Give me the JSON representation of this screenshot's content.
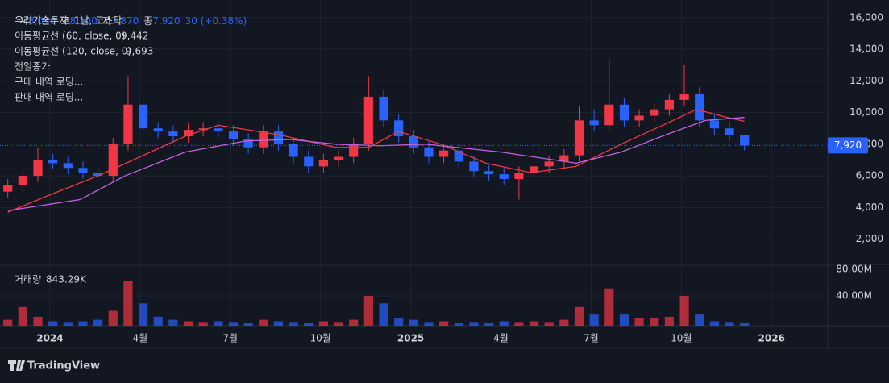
{
  "chart_data": {
    "type": "candlestick",
    "header": {
      "symbol": "우리기술투자, 1날, 코스닥",
      "open_label": "시",
      "open": "8,010",
      "high_label": "고",
      "high": "8,100",
      "low_label": "저",
      "low": "7,870",
      "close_label": "종",
      "close": "7,920",
      "change": "30 (+0.38%)",
      "prev_close": "전일종가",
      "buy": "구매 내역 로딩...",
      "sell": "판매 내역 로딩...",
      "volume_label": "거래량",
      "volume_value": "843.29K"
    },
    "x": [
      -1.4,
      -0.9,
      -0.4,
      0.1,
      0.6,
      1.1,
      1.6,
      2.1,
      2.6,
      3.1,
      3.6,
      4.1,
      4.6,
      5.1,
      5.6,
      6.1,
      6.6,
      7.1,
      7.6,
      8.1,
      8.6,
      9.1,
      9.6,
      10.1,
      10.6,
      11.1,
      11.6,
      12.1,
      12.6,
      13.1,
      13.6,
      14.1,
      14.6,
      15.1,
      15.6,
      16.1,
      16.6,
      17.1,
      17.6,
      18.1,
      18.6,
      19.1,
      19.6,
      20.1,
      20.6,
      21.1,
      21.6,
      22.1,
      22.6,
      23.1
    ],
    "open": [
      5000,
      5400,
      6000,
      7000,
      6800,
      6500,
      6200,
      6000,
      8000,
      10500,
      9000,
      8800,
      8500,
      8900,
      9000,
      8800,
      8300,
      7800,
      8800,
      8000,
      7200,
      6600,
      7000,
      7200,
      8000,
      11000,
      9500,
      8500,
      7800,
      7200,
      7600,
      6900,
      6300,
      6100,
      5800,
      6200,
      6600,
      6900,
      7300,
      9500,
      9200,
      10500,
      9500,
      9800,
      10200,
      10800,
      11200,
      9500,
      9000,
      8600
    ],
    "high": [
      5800,
      6400,
      7800,
      7400,
      7200,
      6900,
      6600,
      8400,
      12300,
      10900,
      9400,
      9200,
      9300,
      9400,
      9400,
      9200,
      8700,
      9200,
      9200,
      8400,
      7600,
      7400,
      7600,
      8400,
      12300,
      11400,
      9900,
      8900,
      8200,
      8000,
      8000,
      7300,
      6700,
      6500,
      6600,
      7000,
      7300,
      7700,
      10400,
      10200,
      13400,
      10900,
      10200,
      10600,
      11200,
      13000,
      11600,
      9900,
      9400,
      8600
    ],
    "low": [
      4600,
      5000,
      5600,
      6400,
      6100,
      5800,
      5600,
      5600,
      7600,
      8600,
      8400,
      8100,
      8100,
      8500,
      8400,
      7900,
      7400,
      7400,
      7600,
      6800,
      6200,
      6200,
      6600,
      6800,
      7600,
      9100,
      8100,
      7400,
      6800,
      6800,
      6500,
      5900,
      5700,
      5400,
      4500,
      5800,
      6200,
      6500,
      6900,
      8800,
      8800,
      9100,
      9100,
      9400,
      9800,
      10400,
      9100,
      8600,
      8200,
      7600
    ],
    "close": [
      5400,
      6000,
      7000,
      6800,
      6500,
      6200,
      6000,
      8000,
      10500,
      9000,
      8800,
      8500,
      8900,
      9000,
      8800,
      8300,
      7800,
      8800,
      8000,
      7200,
      6600,
      7000,
      7200,
      8000,
      11000,
      9500,
      8500,
      7800,
      7200,
      7600,
      6900,
      6300,
      6100,
      5800,
      6200,
      6600,
      6900,
      7300,
      9500,
      9200,
      10500,
      9500,
      9800,
      10200,
      10800,
      11200,
      9500,
      9000,
      8600,
      7920
    ],
    "volume": [
      8000000,
      25000000,
      12000000,
      6000000,
      5000000,
      6000000,
      8000000,
      20000000,
      60000000,
      30000000,
      12000000,
      8000000,
      6000000,
      5000000,
      6000000,
      5000000,
      4000000,
      8000000,
      6000000,
      5000000,
      4000000,
      6000000,
      5000000,
      8000000,
      40000000,
      30000000,
      10000000,
      8000000,
      5000000,
      6000000,
      4000000,
      5000000,
      4000000,
      6000000,
      5000000,
      6000000,
      5000000,
      8000000,
      25000000,
      15000000,
      50000000,
      15000000,
      10000000,
      10000000,
      12000000,
      40000000,
      15000000,
      6000000,
      5000000,
      4000000
    ],
    "up_color": "#f23645",
    "down_color": "#2962ff",
    "series": [
      {
        "name": "이동평균선 (60, close, 0)",
        "legend_value": "9,442",
        "color": "#f23645",
        "x": [
          -1.4,
          0,
          1.6,
          3,
          4.5,
          5.6,
          7.6,
          9.5,
          10.6,
          11.6,
          13,
          14.5,
          16,
          17.5,
          19,
          20.5,
          21.5,
          22.5,
          23.1
        ],
        "values": [
          3700,
          4800,
          6000,
          7200,
          8500,
          9200,
          8600,
          7800,
          7800,
          8800,
          8000,
          6800,
          6200,
          6600,
          8000,
          9300,
          10200,
          9700,
          9442
        ]
      },
      {
        "name": "이동평균선 (120, close, 0)",
        "legend_value": "9,693",
        "color": "#c660e0",
        "x": [
          -1.4,
          1,
          2.5,
          4.5,
          6.5,
          8,
          9.5,
          11,
          12.5,
          15,
          17.5,
          19,
          20.5,
          21.8,
          23.1
        ],
        "values": [
          3800,
          4500,
          6000,
          7500,
          8200,
          8300,
          8000,
          7900,
          8000,
          7500,
          6800,
          7500,
          8600,
          9500,
          9693
        ]
      }
    ],
    "last_price": {
      "value": 7920,
      "label": "7,920"
    },
    "xlim": [
      -1.66,
      25.87
    ],
    "xticks": [
      {
        "value": 0,
        "label": "2024"
      },
      {
        "value": 3,
        "label": "4월"
      },
      {
        "value": 6,
        "label": "7월"
      },
      {
        "value": 9,
        "label": "10월"
      },
      {
        "value": 12,
        "label": "2025"
      },
      {
        "value": 15,
        "label": "4월"
      },
      {
        "value": 18,
        "label": "7월"
      },
      {
        "value": 21,
        "label": "10월"
      },
      {
        "value": 24,
        "label": "2026"
      }
    ],
    "ylim": [
      400,
      16600
    ],
    "yticks": [
      {
        "value": 2000,
        "label": "2,000"
      },
      {
        "value": 4000,
        "label": "4,000"
      },
      {
        "value": 6000,
        "label": "6,000"
      },
      {
        "value": 8000,
        "label": "8,000"
      },
      {
        "value": 10000,
        "label": "10,000"
      },
      {
        "value": 12000,
        "label": "12,000"
      },
      {
        "value": 14000,
        "label": "14,000"
      },
      {
        "value": 16000,
        "label": "16,000"
      }
    ],
    "vol_ylim": [
      0,
      80000000
    ],
    "vol_yticks": [
      {
        "value": 40000000,
        "label": "40.00M"
      },
      {
        "value": 80000000,
        "label": "80.00M"
      }
    ],
    "grid": true,
    "brand": "TradingView"
  }
}
